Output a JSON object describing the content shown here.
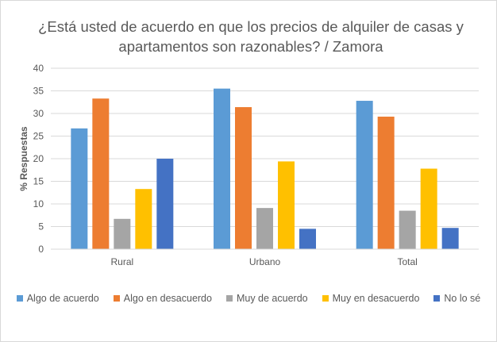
{
  "chart_data": {
    "type": "bar",
    "title_line1": "¿Está usted de acuerdo en que los precios de alquiler de casas y",
    "title_line2": "apartamentos son razonables? / Zamora",
    "xlabel": "",
    "ylabel": "% Respuestas",
    "ylim": [
      0,
      40
    ],
    "yticks": [
      "0",
      "5",
      "10",
      "15",
      "20",
      "25",
      "30",
      "35",
      "40"
    ],
    "grid": true,
    "legend_position": "bottom",
    "categories": [
      "Rural",
      "Urbano",
      "Total"
    ],
    "series": [
      {
        "name": "Algo de acuerdo",
        "color": "#5b9bd5",
        "values": [
          26.7,
          35.5,
          32.8
        ]
      },
      {
        "name": "Algo en desacuerdo",
        "color": "#ed7d31",
        "values": [
          33.3,
          31.4,
          29.3
        ]
      },
      {
        "name": "Muy de acuerdo",
        "color": "#a5a5a5",
        "values": [
          6.7,
          9.1,
          8.5
        ]
      },
      {
        "name": "Muy en desacuerdo",
        "color": "#ffc000",
        "values": [
          13.3,
          19.4,
          17.8
        ]
      },
      {
        "name": "No lo sé",
        "color": "#4472c4",
        "values": [
          20.0,
          4.5,
          4.7
        ]
      }
    ]
  }
}
